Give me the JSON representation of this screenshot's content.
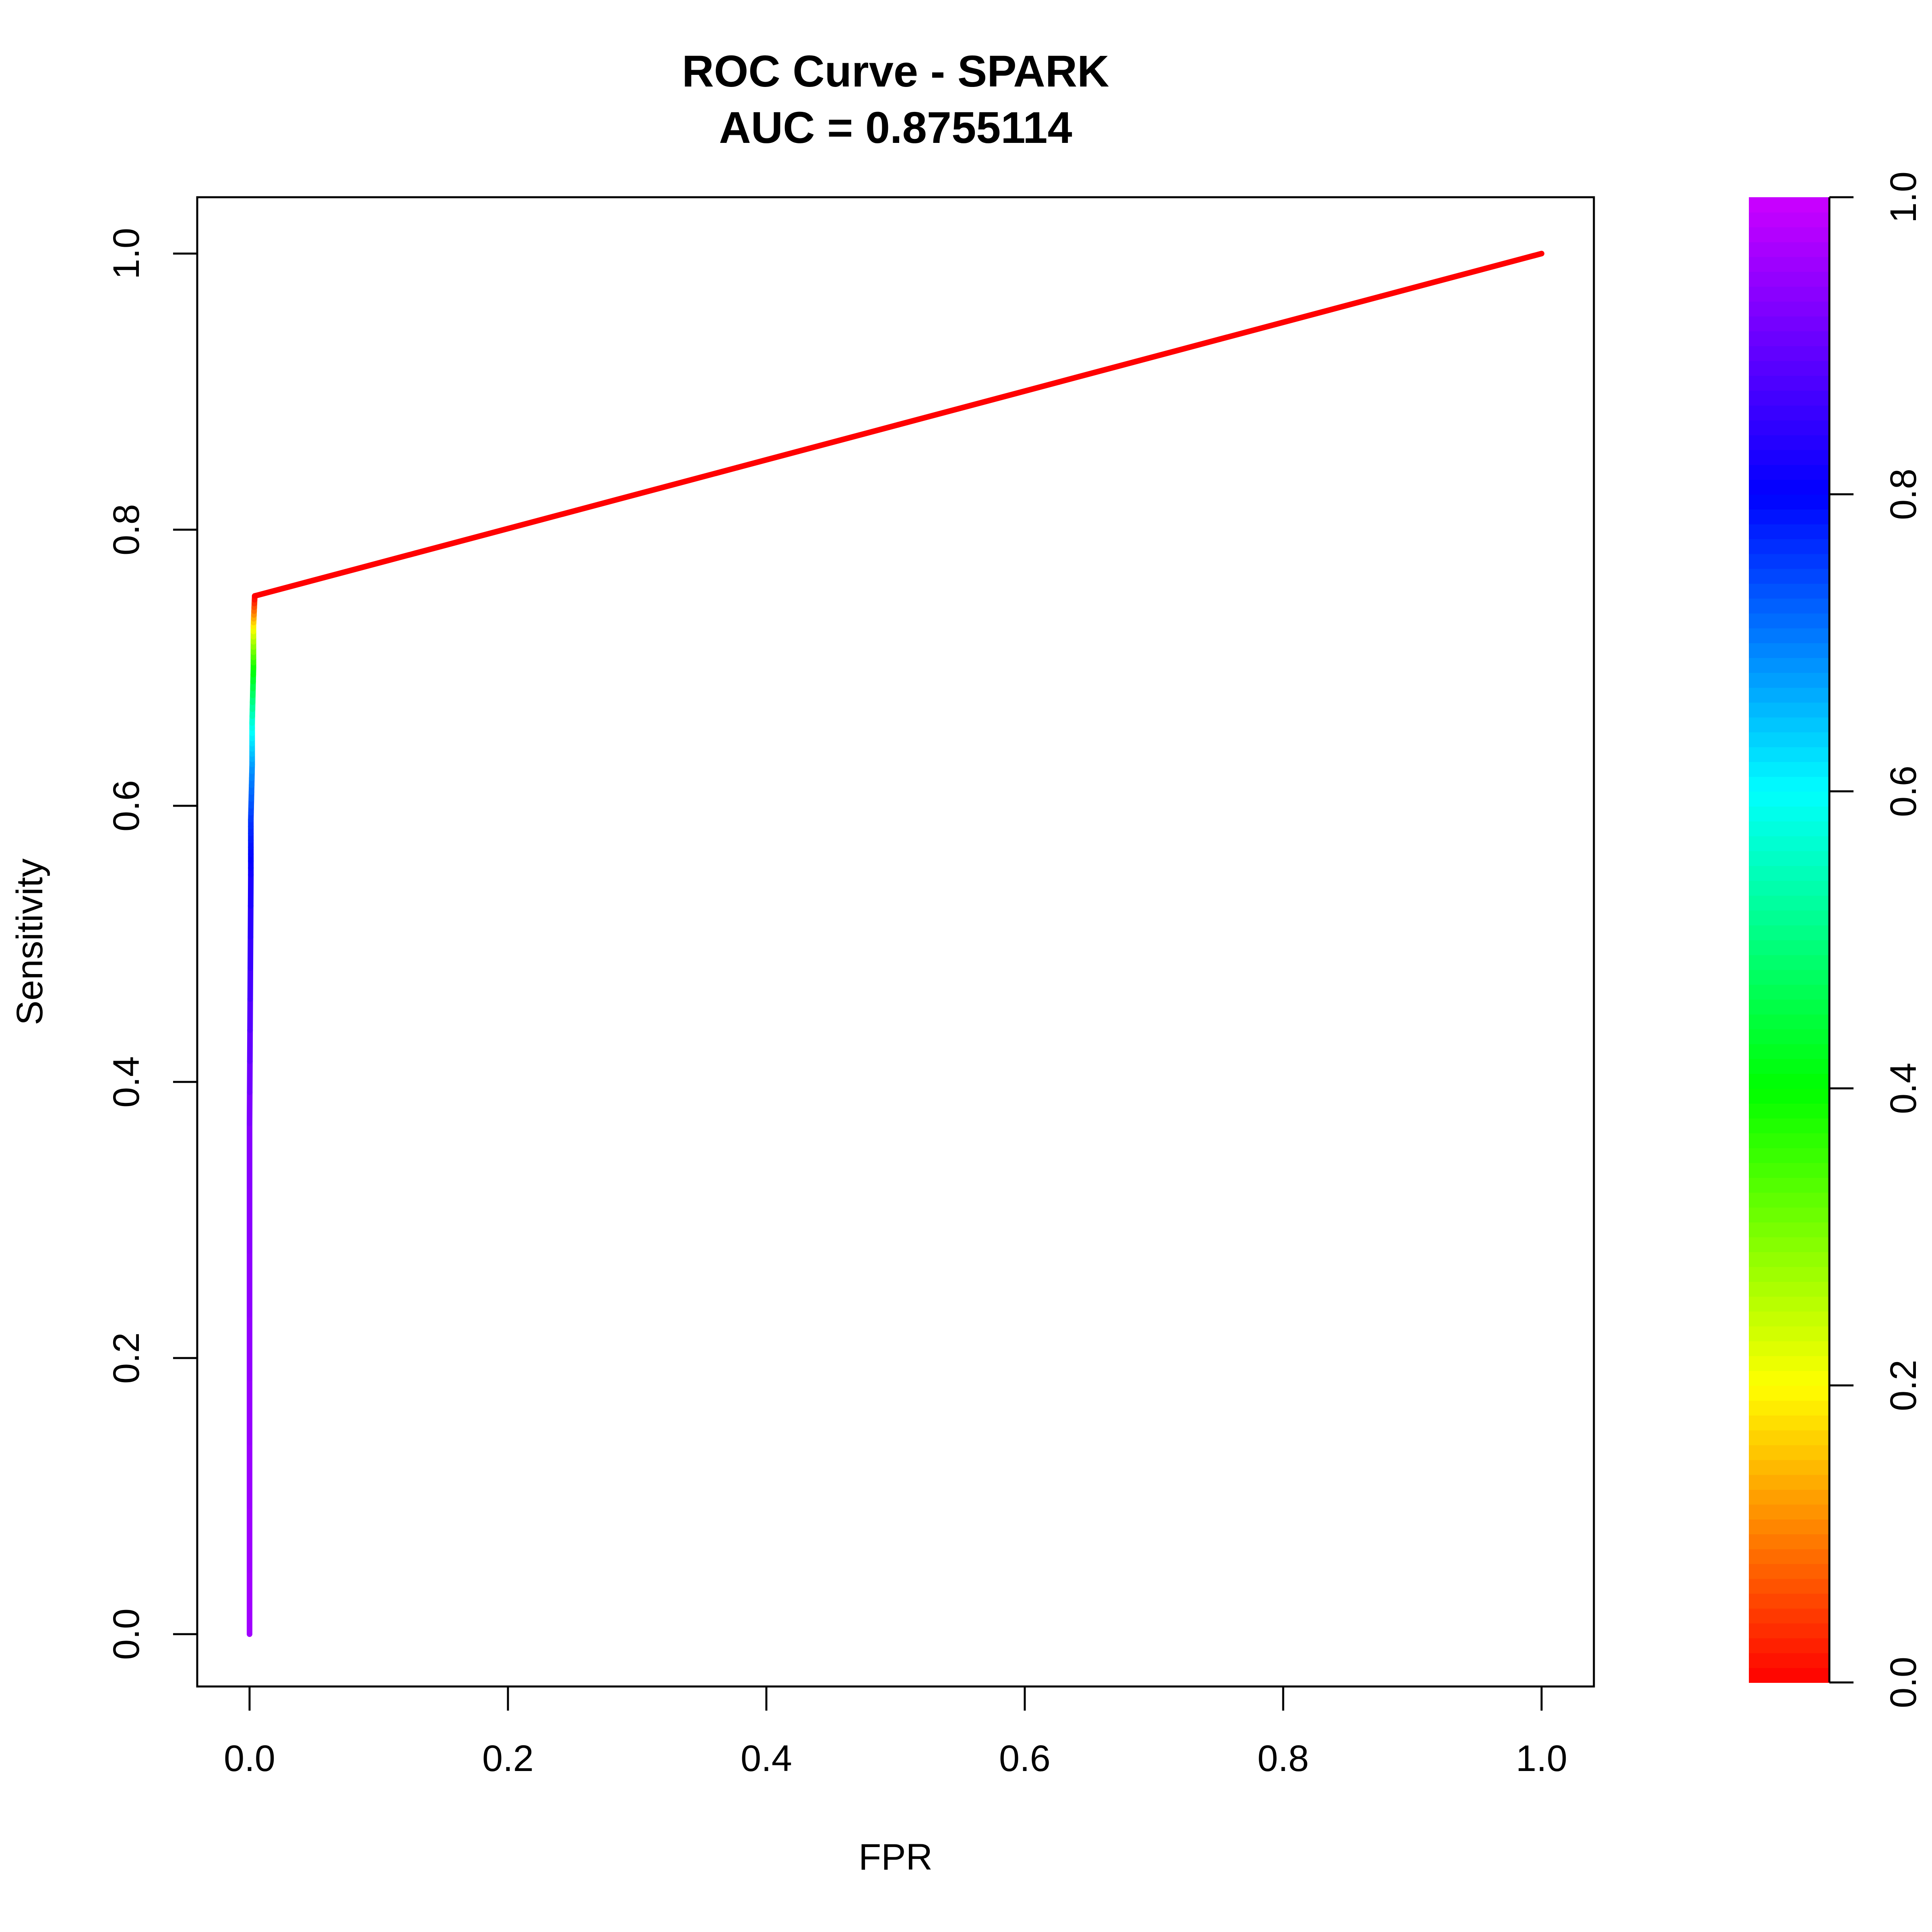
{
  "chart_data": {
    "type": "line",
    "title": "ROC Curve - SPARK",
    "subtitle": "AUC = 0.8755114",
    "xlabel": "FPR",
    "ylabel": "Sensitivity",
    "xlim": [
      0,
      1
    ],
    "ylim": [
      0,
      1
    ],
    "x_ticks": [
      "0.0",
      "0.2",
      "0.4",
      "0.6",
      "0.8",
      "1.0"
    ],
    "y_ticks": [
      "0.0",
      "0.2",
      "0.4",
      "0.6",
      "0.8",
      "1.0"
    ],
    "grid": false,
    "legend": "none",
    "series": [
      {
        "points": [
          {
            "fpr": 0.0,
            "sensitivity": 0.0,
            "cutoff": 0.96
          },
          {
            "fpr": 0.0,
            "sensitivity": 0.37,
            "cutoff": 0.93
          },
          {
            "fpr": 0.001,
            "sensitivity": 0.55,
            "cutoff": 0.82
          },
          {
            "fpr": 0.001,
            "sensitivity": 0.59,
            "cutoff": 0.76
          },
          {
            "fpr": 0.002,
            "sensitivity": 0.63,
            "cutoff": 0.68
          },
          {
            "fpr": 0.002,
            "sensitivity": 0.66,
            "cutoff": 0.58
          },
          {
            "fpr": 0.003,
            "sensitivity": 0.7,
            "cutoff": 0.4
          },
          {
            "fpr": 0.003,
            "sensitivity": 0.73,
            "cutoff": 0.2
          },
          {
            "fpr": 0.004,
            "sensitivity": 0.752,
            "cutoff": 0.0
          },
          {
            "fpr": 1.0,
            "sensitivity": 1.0,
            "cutoff": 0.0
          }
        ]
      }
    ],
    "colorbar": {
      "range": [
        0,
        1
      ],
      "ticks": [
        "0.0",
        "0.2",
        "0.4",
        "0.6",
        "0.8",
        "1.0"
      ],
      "palette": "rainbow",
      "colors": [
        "#FF0000",
        "#FFFF00",
        "#00FF00",
        "#00FFFF",
        "#0000FF",
        "#CC00FF"
      ]
    }
  }
}
